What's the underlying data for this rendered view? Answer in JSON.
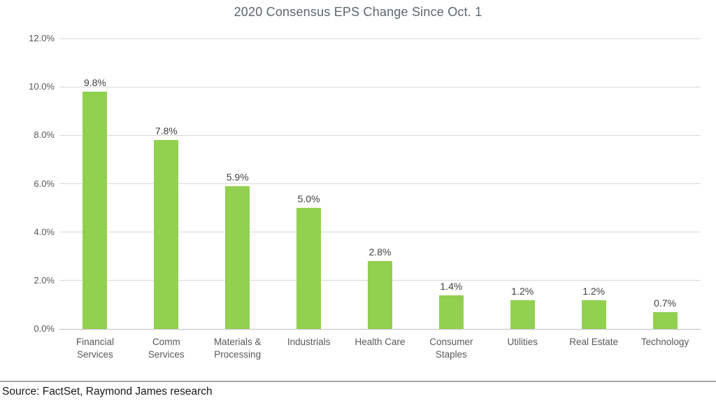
{
  "title": "2020 Consensus EPS Change Since Oct. 1",
  "source": "Source: FactSet, Raymond James research",
  "colors": {
    "bar": "#92d050",
    "gridline": "#d9d9d9",
    "axis_line": "#bfbfbf",
    "title_text": "#5b6770",
    "value_label_text": "#404040",
    "tick_text": "#595959",
    "source_text": "#1a1a1a"
  },
  "chart_data": {
    "type": "bar",
    "title": "2020 Consensus EPS Change Since Oct. 1",
    "categories": [
      "Financial Services",
      "Comm Services",
      "Materials & Processing",
      "Industrials",
      "Health Care",
      "Consumer Staples",
      "Utilities",
      "Real Estate",
      "Technology"
    ],
    "categories_display": [
      "Financial\nServices",
      "Comm\nServices",
      "Materials &\nProcessing",
      "Industrials",
      "Health Care",
      "Consumer\nStaples",
      "Utilities",
      "Real Estate",
      "Technology"
    ],
    "values": [
      9.8,
      7.8,
      5.9,
      5.0,
      2.8,
      1.4,
      1.2,
      1.2,
      0.7
    ],
    "value_labels": [
      "9.8%",
      "7.8%",
      "5.9%",
      "5.0%",
      "2.8%",
      "1.4%",
      "1.2%",
      "1.2%",
      "0.7%"
    ],
    "xlabel": "",
    "ylabel": "",
    "ylim": [
      0,
      12
    ],
    "ytick_step": 2,
    "ytick_labels": [
      "0.0%",
      "2.0%",
      "4.0%",
      "6.0%",
      "8.0%",
      "10.0%",
      "12.0%"
    ],
    "grid": true,
    "legend": false
  }
}
